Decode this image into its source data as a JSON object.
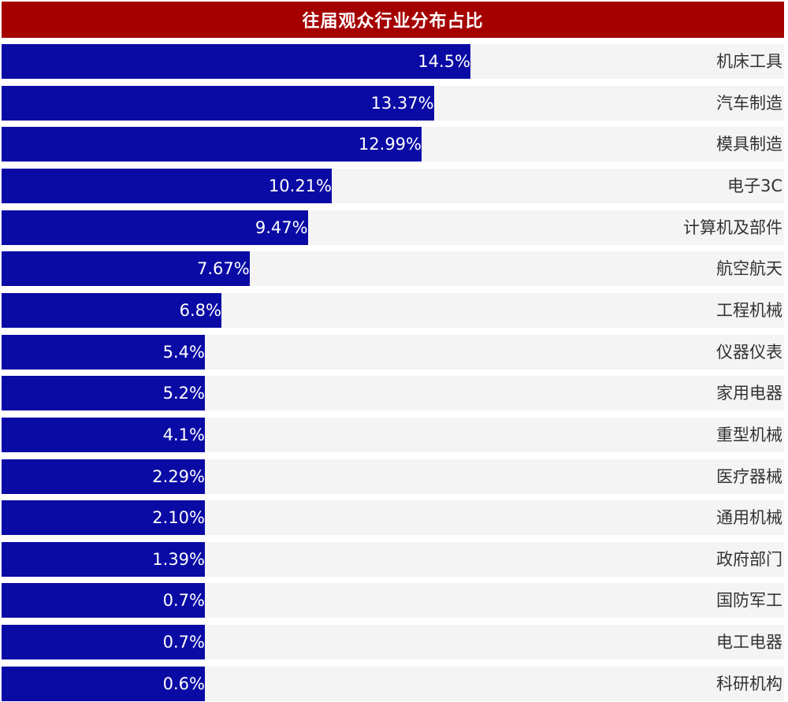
{
  "chart_data": {
    "type": "bar",
    "orientation": "horizontal",
    "title": "往届观众行业分布占比",
    "categories": [
      "机床工具",
      "汽车制造",
      "模具制造",
      "电子3C",
      "计算机及部件",
      "航空航天",
      "工程机械",
      "仪器仪表",
      "家用电器",
      "重型机械",
      "医疗器械",
      "通用机械",
      "政府部门",
      "国防军工",
      "电工电器",
      "科研机构"
    ],
    "values": [
      14.5,
      13.37,
      12.99,
      10.21,
      9.47,
      7.67,
      6.8,
      5.4,
      5.2,
      4.1,
      2.29,
      2.1,
      1.39,
      0.7,
      0.7,
      0.6
    ],
    "value_labels": [
      "14.5%",
      "13.37%",
      "12.99%",
      "10.21%",
      "9.47%",
      "7.67%",
      "6.8%",
      "5.4%",
      "5.2%",
      "4.1%",
      "2.29%",
      "2.10%",
      "1.39%",
      "0.7%",
      "0.7%",
      "0.6%"
    ],
    "bar_color": "#0a0aa5",
    "track_color": "#f4f4f4",
    "title_color": "#a50000"
  }
}
